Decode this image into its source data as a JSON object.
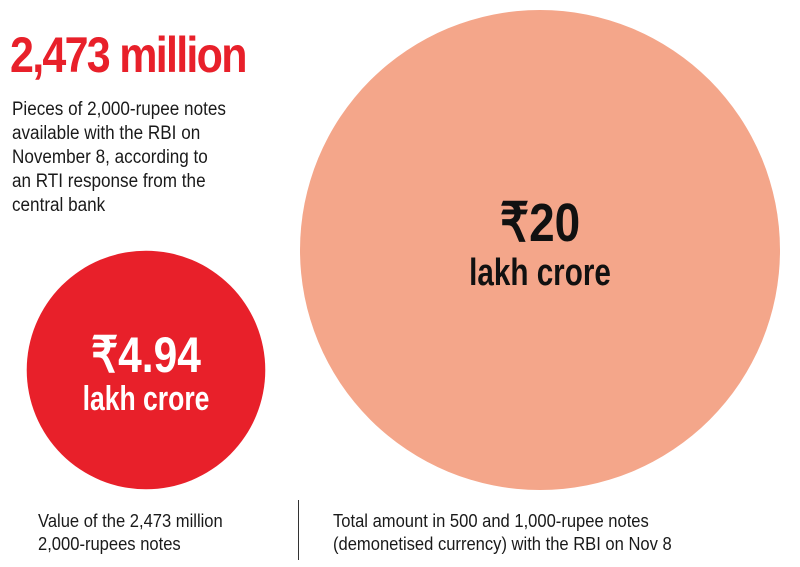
{
  "headline": {
    "value": "2,473 million",
    "description_lines": [
      "Pieces of 2,000-rupee notes",
      "available with the RBI on",
      "November 8, according to",
      "an RTI response from the",
      "central bank"
    ]
  },
  "colors": {
    "accent_red": "#e8202a",
    "salmon": "#f4a68a",
    "text_dark": "#111111",
    "text_white": "#ffffff"
  },
  "chart_data": {
    "type": "bubble",
    "unit": "lakh crore",
    "bubbles": [
      {
        "value": 4.94,
        "value_label": "₹4.94",
        "unit_label": "lakh crore",
        "caption": [
          "Value of the 2,473 million",
          "2,000-rupees notes"
        ]
      },
      {
        "value": 20,
        "value_label": "₹20",
        "unit_label": "lakh crore",
        "caption": [
          "Total amount in 500 and 1,000-rupee notes",
          "(demonetised currency) with the RBI on Nov 8"
        ]
      }
    ]
  }
}
